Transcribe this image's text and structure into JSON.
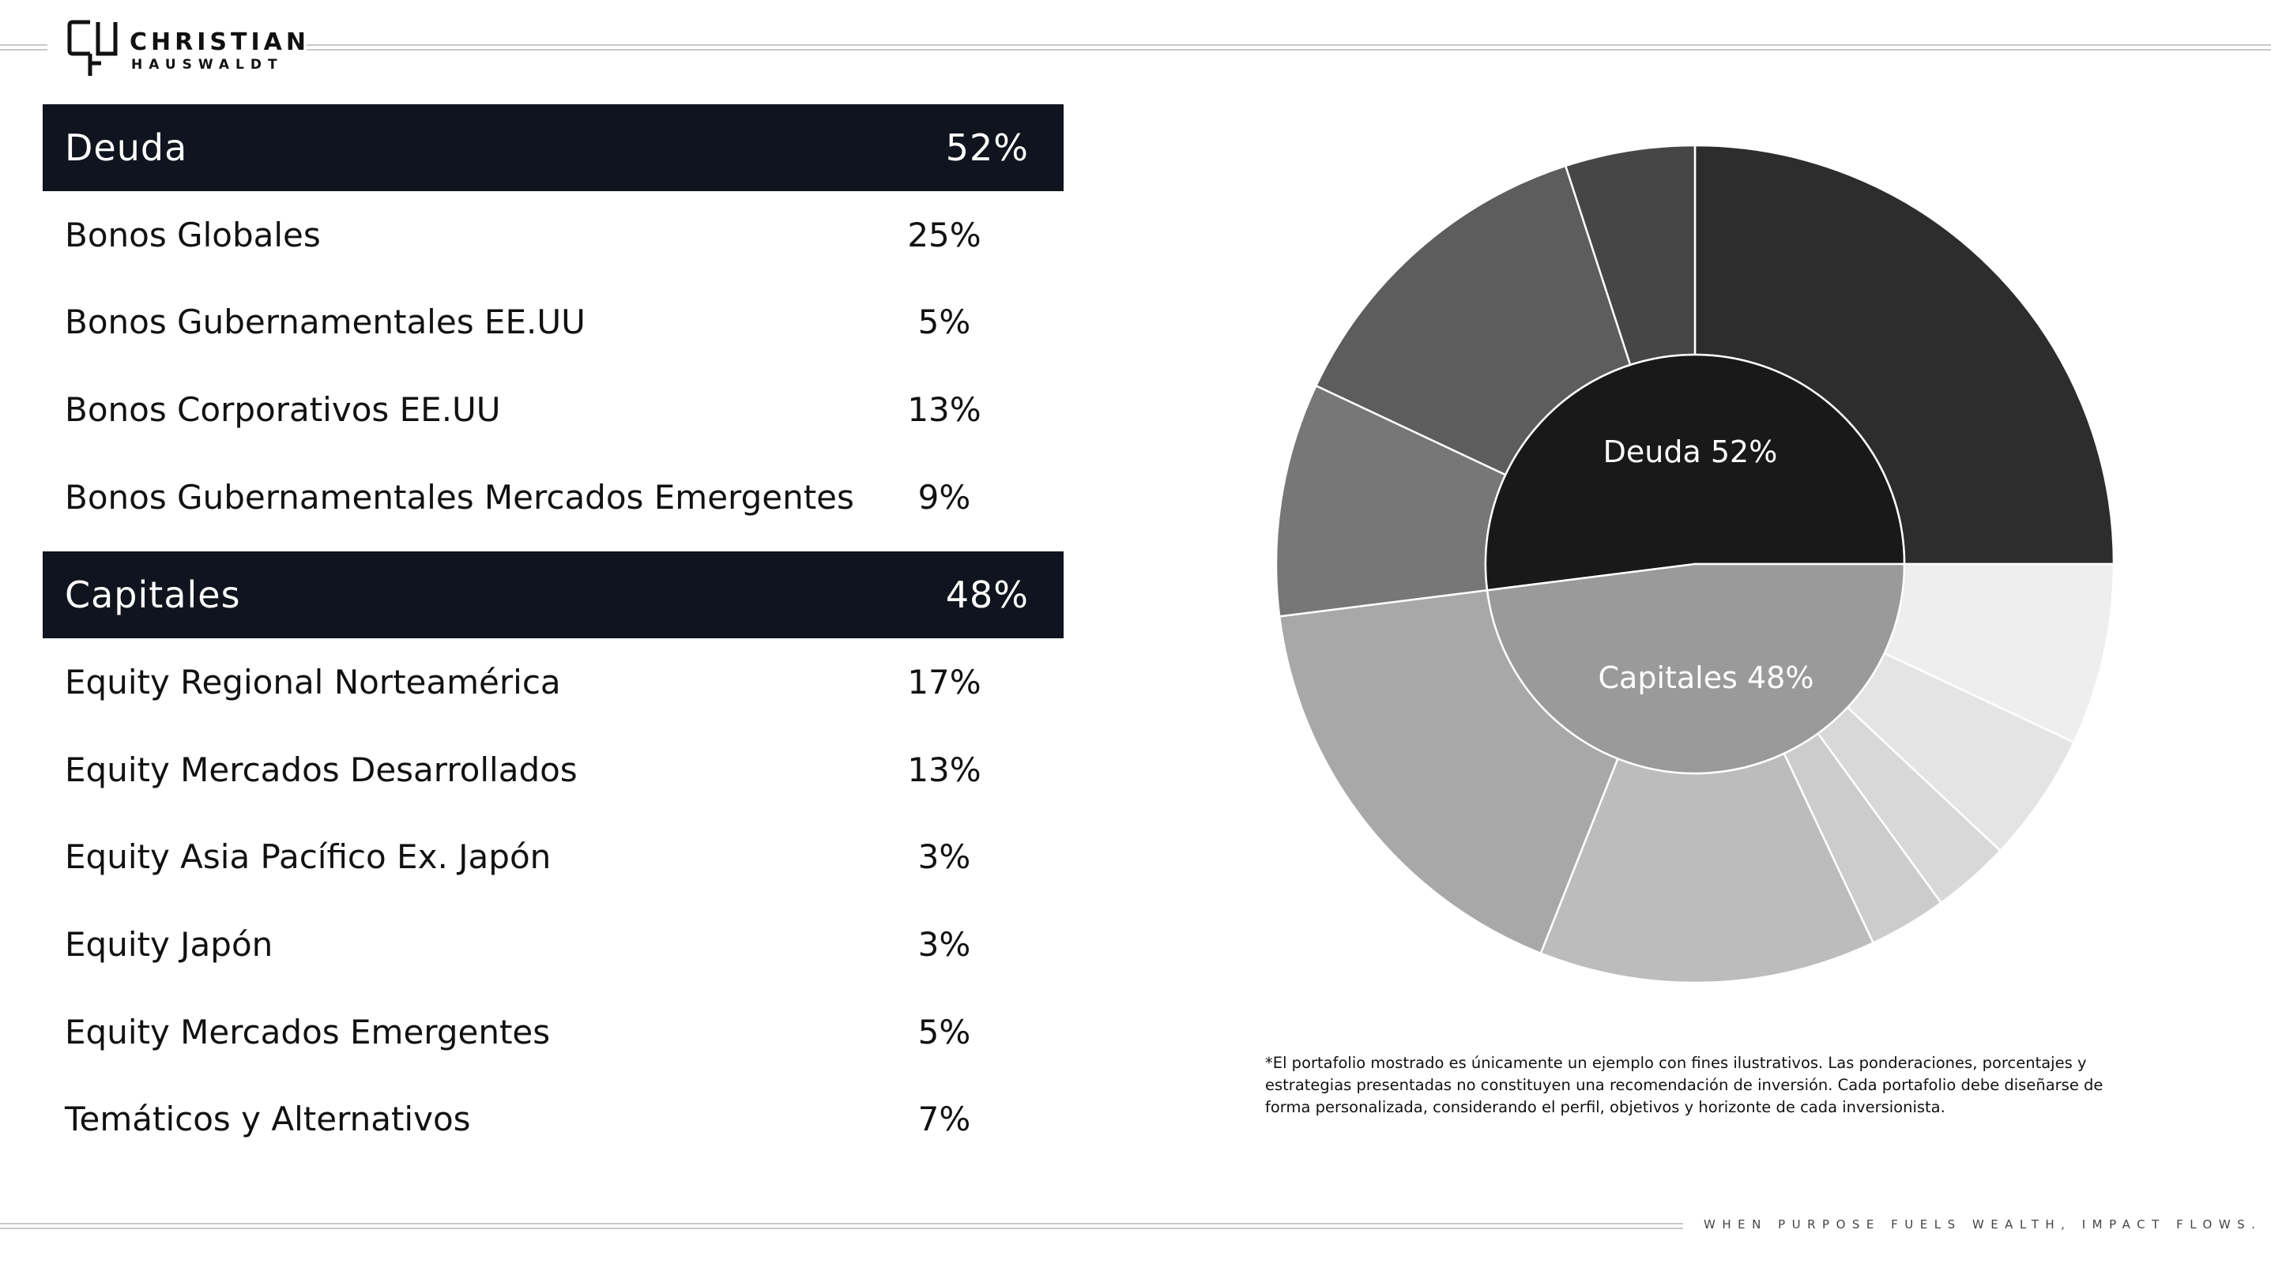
{
  "brand": {
    "line1": "CHRISTIAN",
    "line2": "HAUSWALDT"
  },
  "groups": [
    {
      "name": "Deuda",
      "pct": "52%",
      "items": [
        {
          "label": "Bonos Globales",
          "pct": "25%"
        },
        {
          "label": "Bonos Gubernamentales EE.UU",
          "pct": "5%"
        },
        {
          "label": "Bonos Corporativos EE.UU",
          "pct": "13%"
        },
        {
          "label": "Bonos Gubernamentales Mercados Emergentes",
          "pct": "9%"
        }
      ]
    },
    {
      "name": "Capitales",
      "pct": "48%",
      "items": [
        {
          "label": "Equity Regional Norteamérica",
          "pct": "17%"
        },
        {
          "label": "Equity Mercados Desarrollados",
          "pct": "13%"
        },
        {
          "label": "Equity Asia Pacífico Ex. Japón",
          "pct": "3%"
        },
        {
          "label": "Equity Japón",
          "pct": "3%"
        },
        {
          "label": "Equity Mercados Emergentes",
          "pct": "5%"
        },
        {
          "label": "Temáticos y Alternativos",
          "pct": "7%"
        }
      ]
    }
  ],
  "chart_data": {
    "type": "sunburst",
    "inner": [
      {
        "name": "Deuda",
        "value": 52,
        "label": "Deuda 52%",
        "color": "#191919"
      },
      {
        "name": "Capitales",
        "value": 48,
        "label": "Capitales 48%",
        "color": "#9a9a9a"
      }
    ],
    "outer": [
      {
        "name": "Bonos Globales",
        "value": 25,
        "color": "#2d2d2d"
      },
      {
        "name": "Bonos Gubernamentales EE.UU",
        "value": 5,
        "color": "#464646"
      },
      {
        "name": "Bonos Corporativos EE.UU",
        "value": 13,
        "color": "#5d5d5d"
      },
      {
        "name": "Bonos Gubernamentales Mercados Emergentes",
        "value": 9,
        "color": "#777777"
      },
      {
        "name": "Equity Regional Norteamérica",
        "value": 17,
        "color": "#a8a8a8"
      },
      {
        "name": "Equity Mercados Desarrollados",
        "value": 13,
        "color": "#bcbcbc"
      },
      {
        "name": "Equity Asia Pacífico Ex. Japón",
        "value": 3,
        "color": "#cccccc"
      },
      {
        "name": "Equity Japón",
        "value": 3,
        "color": "#d8d8d8"
      },
      {
        "name": "Equity Mercados Emergentes",
        "value": 5,
        "color": "#e4e4e4"
      },
      {
        "name": "Temáticos y Alternativos",
        "value": 7,
        "color": "#eeeeee"
      }
    ],
    "start": "3 o'clock (east), counter-clockwise"
  },
  "footnote": "*El portafolio mostrado es únicamente un ejemplo con fines ilustrativos. Las ponderaciones, porcentajes y estrategias presentadas no constituyen una recomendación de inversión. Cada portafolio debe diseñarse de forma personalizada, considerando el perfil, objetivos y horizonte de cada inversionista.",
  "tagline": "WHEN PURPOSE FUELS WEALTH, IMPACT FLOWS."
}
